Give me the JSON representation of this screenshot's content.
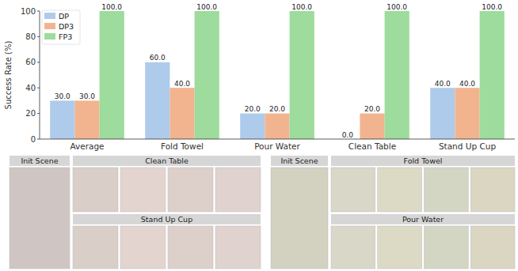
{
  "chart_data": {
    "type": "bar",
    "y_label": "Success Rate (%)",
    "categories": [
      "Average",
      "Fold Towel",
      "Pour Water",
      "Clean Table",
      "Stand Up Cup"
    ],
    "series": [
      {
        "name": "DP",
        "color": "#aecbeb",
        "values": [
          30,
          60,
          20,
          0,
          40
        ],
        "value_labels": [
          "30.0",
          "60.0",
          "20.0",
          "0.0",
          "40.0"
        ]
      },
      {
        "name": "DP3",
        "color": "#f2b48f",
        "values": [
          30,
          40,
          20,
          20,
          40
        ],
        "value_labels": [
          "30.0",
          "40.0",
          "20.0",
          "20.0",
          "40.0"
        ]
      },
      {
        "name": "FP3",
        "color": "#9ddc9c",
        "values": [
          100,
          100,
          100,
          100,
          100
        ],
        "value_labels": [
          "100.0",
          "100.0",
          "100.0",
          "100.0",
          "100.0"
        ]
      }
    ],
    "ylim": [
      0,
      100
    ],
    "yticks": [
      0,
      20,
      40,
      60,
      80,
      100
    ],
    "grid": false,
    "legend": "upper left",
    "data_labels": true
  },
  "panels": [
    {
      "title": "Init Scene"
    },
    {
      "title": "Clean Table"
    },
    {
      "title": "Stand Up Cup"
    },
    {
      "title": "Init Scene"
    },
    {
      "title": "Fold Towel"
    },
    {
      "title": "Pour Water"
    }
  ]
}
